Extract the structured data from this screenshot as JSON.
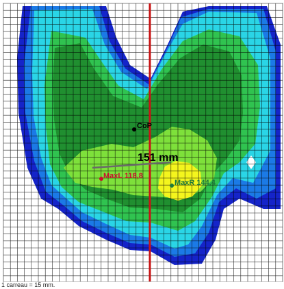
{
  "legend_caption": "1 carreau = 15 mm.",
  "markers": {
    "cop": {
      "label": "CoP",
      "color": "#000000"
    },
    "max_l": {
      "label": "MaxL 118,8",
      "color": "#c8102e"
    },
    "max_r": {
      "label": "MaxR 144,4",
      "color": "#1e7a3a"
    }
  },
  "distance": {
    "label": "151 mm",
    "color": "#000000"
  },
  "colors": {
    "pressure_very_low": "#1424c8",
    "pressure_low": "#1c7ae6",
    "pressure_low_mid": "#2ad6e6",
    "pressure_mid": "#31c34f",
    "pressure_high_mid": "#1f8f2f",
    "pressure_high": "#7ee03a",
    "pressure_peak": "#f5f51e",
    "axis_line": "#c81414",
    "grid": "#000000"
  }
}
